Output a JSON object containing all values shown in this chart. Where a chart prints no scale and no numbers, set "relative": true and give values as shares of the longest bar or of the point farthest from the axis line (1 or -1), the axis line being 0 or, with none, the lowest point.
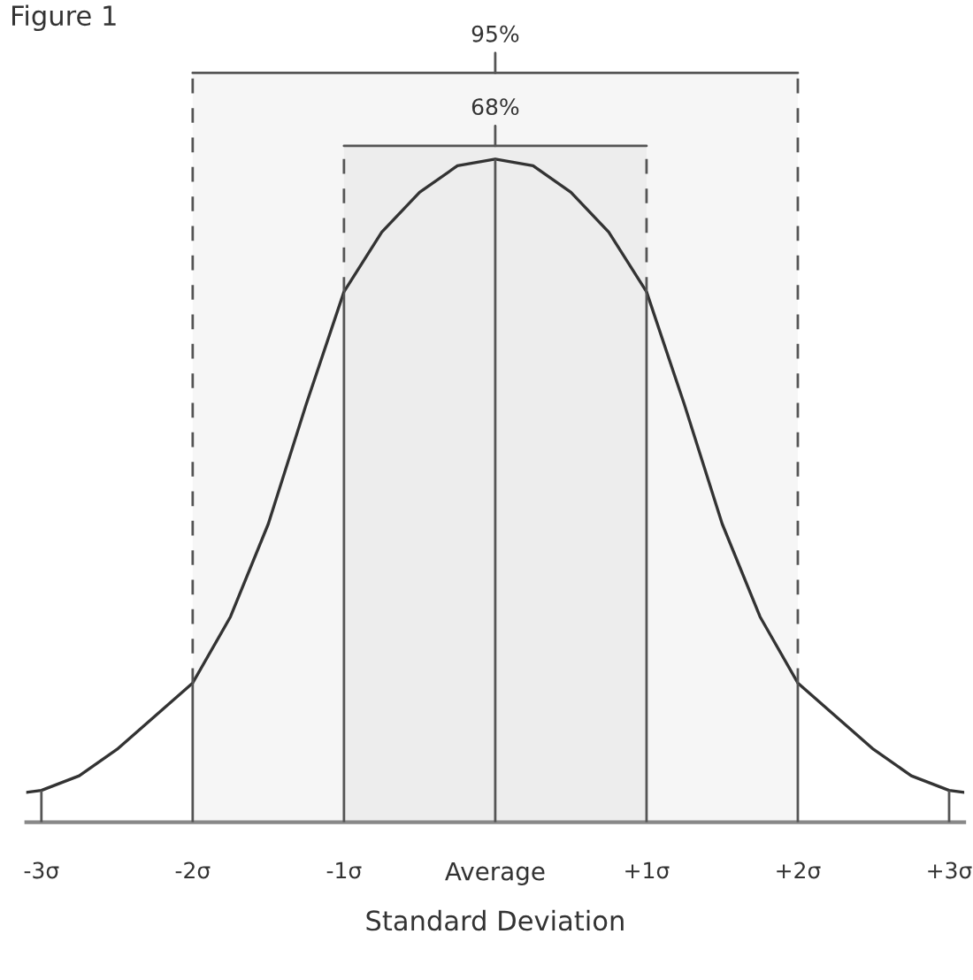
{
  "chart_data": {
    "type": "line",
    "title": "Figure 1",
    "xlabel": "Standard Deviation",
    "relative": true,
    "xlim": [
      -3.1,
      3.1
    ],
    "xticks": [
      {
        "value": -3,
        "label": "-3σ"
      },
      {
        "value": -2,
        "label": "-2σ"
      },
      {
        "value": -1,
        "label": "-1σ"
      },
      {
        "value": 0,
        "label": "Average"
      },
      {
        "value": 1,
        "label": "+1σ"
      },
      {
        "value": 2,
        "label": "+2σ"
      },
      {
        "value": 3,
        "label": "+3σ"
      }
    ],
    "tick_labels": "x",
    "grid": "x",
    "marker": "none",
    "line_style": "solid",
    "series": [
      {
        "color": "#333333",
        "x": [
          -3.1,
          -3,
          -2.75,
          -2.5,
          -2.25,
          -2,
          -1.75,
          -1.5,
          -1.25,
          -1,
          -0.75,
          -0.5,
          -0.25,
          0,
          0.25,
          0.5,
          0.75,
          1,
          1.25,
          1.5,
          1.75,
          2,
          2.25,
          2.5,
          2.75,
          3,
          3.1
        ],
        "values": [
          0.045,
          0.048,
          0.07,
          0.11,
          0.16,
          0.21,
          0.31,
          0.45,
          0.63,
          0.8,
          0.89,
          0.95,
          0.99,
          1,
          0.99,
          0.95,
          0.89,
          0.8,
          0.63,
          0.45,
          0.31,
          0.21,
          0.16,
          0.11,
          0.07,
          0.048,
          0.045
        ]
      }
    ],
    "bands": [
      {
        "axis": "x",
        "from": -1,
        "to": 1,
        "label": "68%",
        "color": "#555555"
      },
      {
        "axis": "x",
        "from": -2,
        "to": 2,
        "label": "95%",
        "color": "#555555"
      }
    ]
  }
}
